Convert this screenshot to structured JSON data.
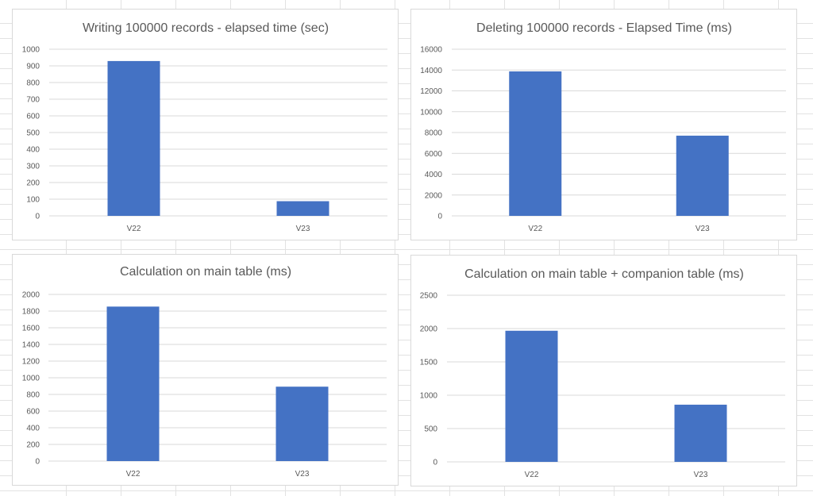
{
  "bar_color": "#4472C4",
  "chart_data": [
    {
      "type": "bar",
      "title": "Writing 100000 records - elapsed time (sec)",
      "categories": [
        "V22",
        "V23"
      ],
      "values": [
        929,
        88
      ],
      "ylim": [
        0,
        1000
      ],
      "yticks": [
        0,
        100,
        200,
        300,
        400,
        500,
        600,
        700,
        800,
        900,
        1000
      ],
      "xlabel": "",
      "ylabel": "",
      "grid": true,
      "legend": "none"
    },
    {
      "type": "bar",
      "title": "Deleting 100000 records - Elapsed Time (ms)",
      "categories": [
        "V22",
        "V23"
      ],
      "values": [
        13870,
        7700
      ],
      "ylim": [
        0,
        16000
      ],
      "yticks": [
        0,
        2000,
        4000,
        6000,
        8000,
        10000,
        12000,
        14000,
        16000
      ],
      "xlabel": "",
      "ylabel": "",
      "grid": true,
      "legend": "none"
    },
    {
      "type": "bar",
      "title": "Calculation on main table (ms)",
      "categories": [
        "V22",
        "V23"
      ],
      "values": [
        1854,
        893
      ],
      "ylim": [
        0,
        2000
      ],
      "yticks": [
        0,
        200,
        400,
        600,
        800,
        1000,
        1200,
        1400,
        1600,
        1800,
        2000
      ],
      "xlabel": "",
      "ylabel": "",
      "grid": true,
      "legend": "none"
    },
    {
      "type": "bar",
      "title": "Calculation on main table + companion table (ms)",
      "categories": [
        "V22",
        "V23"
      ],
      "values": [
        1967,
        858
      ],
      "ylim": [
        0,
        2500
      ],
      "yticks": [
        0,
        500,
        1000,
        1500,
        2000,
        2500
      ],
      "xlabel": "",
      "ylabel": "",
      "grid": true,
      "legend": "none"
    }
  ]
}
